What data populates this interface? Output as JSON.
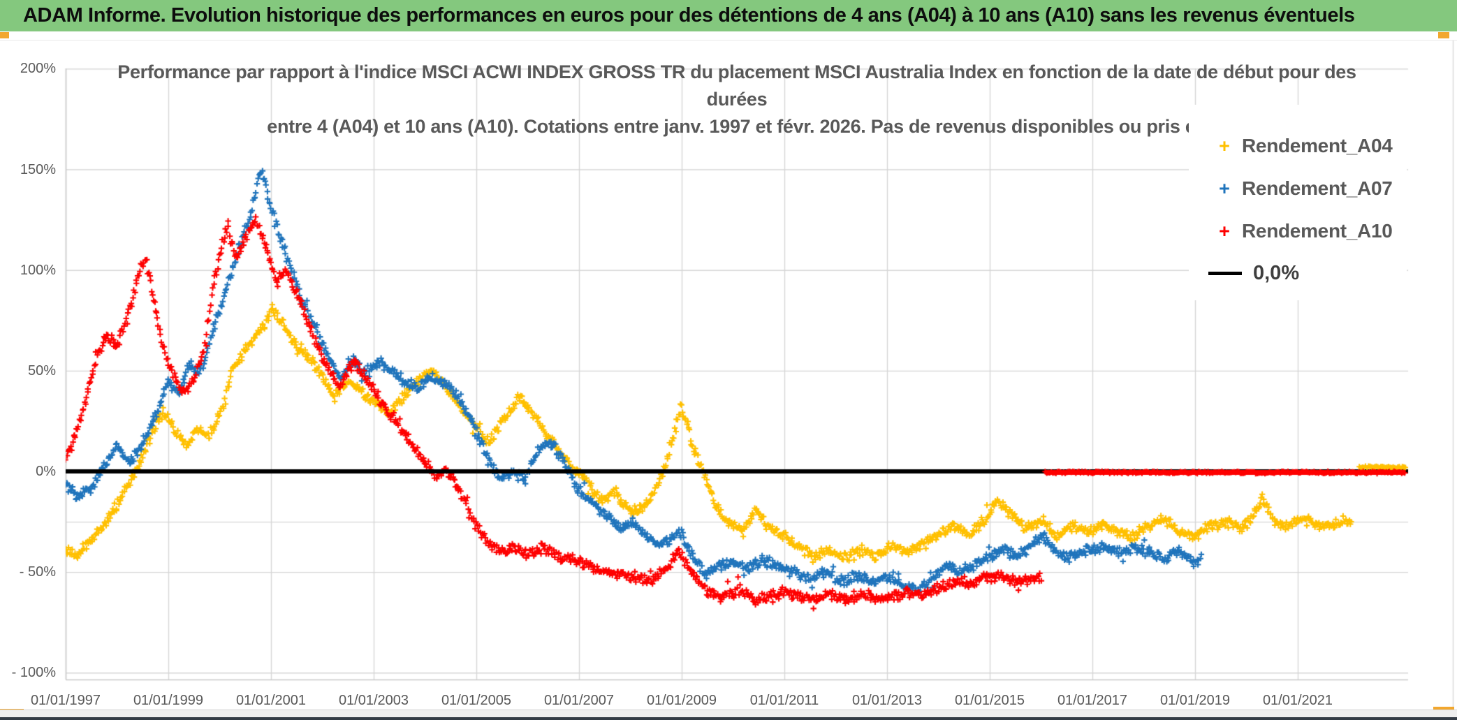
{
  "header": {
    "title": "ADAM Informe. Evolution historique des performances en euros pour des détentions de 4 ans (A04) à 10 ans (A10) sans les revenus éventuels"
  },
  "colors": {
    "title_bar_bg": "#84C87E",
    "grid": "#D6D6D6",
    "axis_line": "#C9C9C9",
    "axis_text": "#595959",
    "chart_frame": "#D9D9D9",
    "corner_handle": "#F2A72E",
    "bottom_bar": "#343C46",
    "zero_line": "#000000"
  },
  "chart_data": {
    "type": "scatter",
    "marker": "plus",
    "title": "Performance par rapport à l'indice MSCI ACWI INDEX GROSS TR  du placement MSCI Australia Index en fonction de la date de début pour des durées entre 4 (A04) et 10 ans (A10). Cotations entre janv. 1997 et févr. 2026. Pas de revenus disponibles ou pris en",
    "title_lines": [
      "Performance par rapport à l'indice MSCI ACWI INDEX GROSS TR  du placement MSCI Australia Index en fonction de la date de début pour des",
      "durées",
      "entre 4 (A04) et 10 ans (A10). Cotations entre janv. 1997 et févr. 2026. Pas de revenus disponibles ou pris en"
    ],
    "legend_position": "right-top",
    "x_axis": {
      "label_format": "dd/mm/yyyy",
      "ticks": [
        {
          "label": "01/01/1997",
          "year": 1997
        },
        {
          "label": "01/01/1999",
          "year": 1999
        },
        {
          "label": "01/01/2001",
          "year": 2001
        },
        {
          "label": "01/01/2003",
          "year": 2003
        },
        {
          "label": "01/01/2005",
          "year": 2005
        },
        {
          "label": "01/01/2007",
          "year": 2007
        },
        {
          "label": "01/01/2009",
          "year": 2009
        },
        {
          "label": "01/01/2011",
          "year": 2011
        },
        {
          "label": "01/01/2013",
          "year": 2013
        },
        {
          "label": "01/01/2015",
          "year": 2015
        },
        {
          "label": "01/01/2017",
          "year": 2017
        },
        {
          "label": "01/01/2019",
          "year": 2019
        },
        {
          "label": "01/01/2021",
          "year": 2021
        }
      ],
      "range_years": [
        1997.0,
        2023.15
      ]
    },
    "y_axis": {
      "unit": "%",
      "ticks": [
        {
          "label": "200%",
          "value": 200
        },
        {
          "label": "150%",
          "value": 150
        },
        {
          "label": "100%",
          "value": 100
        },
        {
          "label": "50%",
          "value": 50
        },
        {
          "label": "0%",
          "value": 0
        },
        {
          "label": "- 50%",
          "value": -50
        },
        {
          "label": "- 100%",
          "value": -100
        }
      ],
      "range": [
        -103,
        200
      ],
      "extra_gridline_value": -25,
      "grid": true
    },
    "zero_line": {
      "value": 0,
      "color": "#000000",
      "legend_label": "0,0%"
    },
    "sampling_note": "weekly points; values interpolated between anchor points [decimal_year, percent] read from the chart",
    "series": [
      {
        "name": "Rendement_A04",
        "color": "#FFC000",
        "marker": "plus",
        "zero_tail_years": [
          2022.2,
          2023.1
        ],
        "anchors": [
          [
            1997.0,
            -38
          ],
          [
            1997.2,
            -43
          ],
          [
            1997.5,
            -34
          ],
          [
            1997.8,
            -24
          ],
          [
            1998.0,
            -17
          ],
          [
            1998.2,
            -8
          ],
          [
            1998.4,
            2
          ],
          [
            1998.65,
            18
          ],
          [
            1998.9,
            30
          ],
          [
            1999.15,
            20
          ],
          [
            1999.35,
            13
          ],
          [
            1999.6,
            22
          ],
          [
            1999.8,
            18
          ],
          [
            2000.05,
            32
          ],
          [
            2000.3,
            54
          ],
          [
            2000.6,
            64
          ],
          [
            2000.85,
            72
          ],
          [
            2001.05,
            80
          ],
          [
            2001.3,
            70
          ],
          [
            2001.55,
            60
          ],
          [
            2001.8,
            55
          ],
          [
            2002.0,
            47
          ],
          [
            2002.25,
            37
          ],
          [
            2002.5,
            45
          ],
          [
            2002.75,
            40
          ],
          [
            2003.0,
            34
          ],
          [
            2003.3,
            29
          ],
          [
            2003.6,
            38
          ],
          [
            2003.9,
            46
          ],
          [
            2004.15,
            50
          ],
          [
            2004.45,
            40
          ],
          [
            2004.75,
            30
          ],
          [
            2005.0,
            21
          ],
          [
            2005.25,
            14
          ],
          [
            2005.5,
            25
          ],
          [
            2005.85,
            37
          ],
          [
            2006.1,
            29
          ],
          [
            2006.4,
            17
          ],
          [
            2006.7,
            7
          ],
          [
            2007.0,
            -1
          ],
          [
            2007.25,
            -9
          ],
          [
            2007.45,
            -15
          ],
          [
            2007.7,
            -10
          ],
          [
            2008.0,
            -20
          ],
          [
            2008.3,
            -17
          ],
          [
            2008.6,
            -4
          ],
          [
            2008.85,
            18
          ],
          [
            2009.0,
            33
          ],
          [
            2009.2,
            14
          ],
          [
            2009.45,
            -2
          ],
          [
            2009.65,
            -16
          ],
          [
            2009.9,
            -25
          ],
          [
            2010.2,
            -30
          ],
          [
            2010.45,
            -19
          ],
          [
            2010.7,
            -29
          ],
          [
            2011.0,
            -32
          ],
          [
            2011.3,
            -38
          ],
          [
            2011.6,
            -42
          ],
          [
            2011.9,
            -39
          ],
          [
            2012.2,
            -43
          ],
          [
            2012.5,
            -39
          ],
          [
            2012.8,
            -42
          ],
          [
            2013.1,
            -37
          ],
          [
            2013.4,
            -40
          ],
          [
            2013.7,
            -35
          ],
          [
            2014.0,
            -31
          ],
          [
            2014.3,
            -27
          ],
          [
            2014.6,
            -32
          ],
          [
            2014.9,
            -24
          ],
          [
            2015.15,
            -14
          ],
          [
            2015.45,
            -22
          ],
          [
            2015.7,
            -28
          ],
          [
            2016.0,
            -24
          ],
          [
            2016.3,
            -32
          ],
          [
            2016.6,
            -27
          ],
          [
            2016.9,
            -30
          ],
          [
            2017.2,
            -26
          ],
          [
            2017.5,
            -30
          ],
          [
            2017.8,
            -32
          ],
          [
            2018.1,
            -27
          ],
          [
            2018.4,
            -24
          ],
          [
            2018.7,
            -30
          ],
          [
            2019.0,
            -32
          ],
          [
            2019.3,
            -27
          ],
          [
            2019.6,
            -25
          ],
          [
            2019.9,
            -28
          ],
          [
            2020.1,
            -24
          ],
          [
            2020.3,
            -13
          ],
          [
            2020.55,
            -25
          ],
          [
            2020.8,
            -28
          ],
          [
            2021.1,
            -23
          ],
          [
            2021.4,
            -27
          ],
          [
            2021.7,
            -26
          ],
          [
            2022.05,
            -25
          ]
        ]
      },
      {
        "name": "Rendement_A07",
        "color": "#1F74BC",
        "marker": "plus",
        "zero_tail_years": null,
        "anchors": [
          [
            1997.0,
            -5
          ],
          [
            1997.2,
            -13
          ],
          [
            1997.5,
            -8
          ],
          [
            1997.75,
            2
          ],
          [
            1998.0,
            12
          ],
          [
            1998.25,
            4
          ],
          [
            1998.5,
            14
          ],
          [
            1998.75,
            28
          ],
          [
            1999.0,
            45
          ],
          [
            1999.2,
            38
          ],
          [
            1999.4,
            53
          ],
          [
            1999.6,
            48
          ],
          [
            1999.85,
            68
          ],
          [
            2000.1,
            88
          ],
          [
            2000.35,
            108
          ],
          [
            2000.6,
            128
          ],
          [
            2000.8,
            150
          ],
          [
            2000.92,
            140
          ],
          [
            2001.1,
            122
          ],
          [
            2001.35,
            103
          ],
          [
            2001.6,
            85
          ],
          [
            2001.85,
            72
          ],
          [
            2002.1,
            58
          ],
          [
            2002.35,
            46
          ],
          [
            2002.6,
            55
          ],
          [
            2002.85,
            49
          ],
          [
            2003.1,
            55
          ],
          [
            2003.35,
            50
          ],
          [
            2003.6,
            44
          ],
          [
            2003.85,
            42
          ],
          [
            2004.1,
            46
          ],
          [
            2004.4,
            44
          ],
          [
            2004.7,
            36
          ],
          [
            2004.95,
            22
          ],
          [
            2005.2,
            8
          ],
          [
            2005.45,
            -4
          ],
          [
            2005.7,
            -1
          ],
          [
            2005.95,
            -4
          ],
          [
            2006.2,
            10
          ],
          [
            2006.45,
            15
          ],
          [
            2006.7,
            5
          ],
          [
            2006.95,
            -8
          ],
          [
            2007.2,
            -14
          ],
          [
            2007.5,
            -21
          ],
          [
            2007.8,
            -28
          ],
          [
            2008.05,
            -25
          ],
          [
            2008.3,
            -32
          ],
          [
            2008.55,
            -38
          ],
          [
            2008.8,
            -33
          ],
          [
            2009.0,
            -31
          ],
          [
            2009.2,
            -42
          ],
          [
            2009.45,
            -51
          ],
          [
            2009.7,
            -47
          ],
          [
            2010.0,
            -45
          ],
          [
            2010.3,
            -48
          ],
          [
            2010.6,
            -44
          ],
          [
            2010.9,
            -48
          ],
          [
            2011.2,
            -50
          ],
          [
            2011.5,
            -54
          ],
          [
            2011.8,
            -50
          ],
          [
            2012.1,
            -55
          ],
          [
            2012.4,
            -52
          ],
          [
            2012.7,
            -55
          ],
          [
            2013.0,
            -53
          ],
          [
            2013.3,
            -56
          ],
          [
            2013.65,
            -59
          ],
          [
            2013.9,
            -53
          ],
          [
            2014.15,
            -47
          ],
          [
            2014.45,
            -49
          ],
          [
            2014.75,
            -46
          ],
          [
            2015.05,
            -42
          ],
          [
            2015.3,
            -39
          ],
          [
            2015.55,
            -43
          ],
          [
            2015.8,
            -36
          ],
          [
            2016.05,
            -31
          ],
          [
            2016.3,
            -40
          ],
          [
            2016.6,
            -43
          ],
          [
            2016.9,
            -39
          ],
          [
            2017.2,
            -37
          ],
          [
            2017.5,
            -41
          ],
          [
            2017.8,
            -38
          ],
          [
            2018.1,
            -40
          ],
          [
            2018.4,
            -43
          ],
          [
            2018.7,
            -40
          ],
          [
            2019.0,
            -45
          ],
          [
            2019.12,
            -43
          ]
        ]
      },
      {
        "name": "Rendement_A10",
        "color": "#FE0000",
        "marker": "plus",
        "zero_tail_years": [
          2016.08,
          2023.1
        ],
        "anchors": [
          [
            1997.0,
            6
          ],
          [
            1997.2,
            18
          ],
          [
            1997.4,
            36
          ],
          [
            1997.6,
            56
          ],
          [
            1997.8,
            68
          ],
          [
            1998.0,
            62
          ],
          [
            1998.2,
            76
          ],
          [
            1998.4,
            96
          ],
          [
            1998.55,
            107
          ],
          [
            1998.7,
            86
          ],
          [
            1998.9,
            62
          ],
          [
            1999.1,
            48
          ],
          [
            1999.3,
            39
          ],
          [
            1999.5,
            46
          ],
          [
            1999.7,
            60
          ],
          [
            1999.85,
            88
          ],
          [
            2000.0,
            108
          ],
          [
            2000.15,
            121
          ],
          [
            2000.3,
            105
          ],
          [
            2000.5,
            117
          ],
          [
            2000.7,
            126
          ],
          [
            2000.9,
            112
          ],
          [
            2001.1,
            95
          ],
          [
            2001.3,
            100
          ],
          [
            2001.5,
            88
          ],
          [
            2001.7,
            76
          ],
          [
            2001.9,
            62
          ],
          [
            2002.1,
            52
          ],
          [
            2002.35,
            42
          ],
          [
            2002.6,
            55
          ],
          [
            2002.8,
            48
          ],
          [
            2003.0,
            40
          ],
          [
            2003.25,
            31
          ],
          [
            2003.5,
            22
          ],
          [
            2003.75,
            13
          ],
          [
            2004.0,
            5
          ],
          [
            2004.2,
            -3
          ],
          [
            2004.4,
            1
          ],
          [
            2004.6,
            -6
          ],
          [
            2004.8,
            -15
          ],
          [
            2005.0,
            -27
          ],
          [
            2005.2,
            -35
          ],
          [
            2005.45,
            -40
          ],
          [
            2005.7,
            -38
          ],
          [
            2006.0,
            -41
          ],
          [
            2006.3,
            -38
          ],
          [
            2006.6,
            -42
          ],
          [
            2006.9,
            -44
          ],
          [
            2007.2,
            -47
          ],
          [
            2007.5,
            -50
          ],
          [
            2007.8,
            -50
          ],
          [
            2008.1,
            -53
          ],
          [
            2008.4,
            -55
          ],
          [
            2008.7,
            -48
          ],
          [
            2008.95,
            -40
          ],
          [
            2009.2,
            -50
          ],
          [
            2009.5,
            -60
          ],
          [
            2009.8,
            -63
          ],
          [
            2010.1,
            -58
          ],
          [
            2010.4,
            -64
          ],
          [
            2010.7,
            -62
          ],
          [
            2011.0,
            -60
          ],
          [
            2011.3,
            -62
          ],
          [
            2011.6,
            -64
          ],
          [
            2011.9,
            -61
          ],
          [
            2012.2,
            -64
          ],
          [
            2012.5,
            -61
          ],
          [
            2012.8,
            -63
          ],
          [
            2013.1,
            -62
          ],
          [
            2013.4,
            -60
          ],
          [
            2013.7,
            -61
          ],
          [
            2014.0,
            -58
          ],
          [
            2014.3,
            -55
          ],
          [
            2014.6,
            -56
          ],
          [
            2014.9,
            -53
          ],
          [
            2015.2,
            -52
          ],
          [
            2015.5,
            -55
          ],
          [
            2015.8,
            -54
          ],
          [
            2016.0,
            -52
          ]
        ]
      }
    ]
  }
}
